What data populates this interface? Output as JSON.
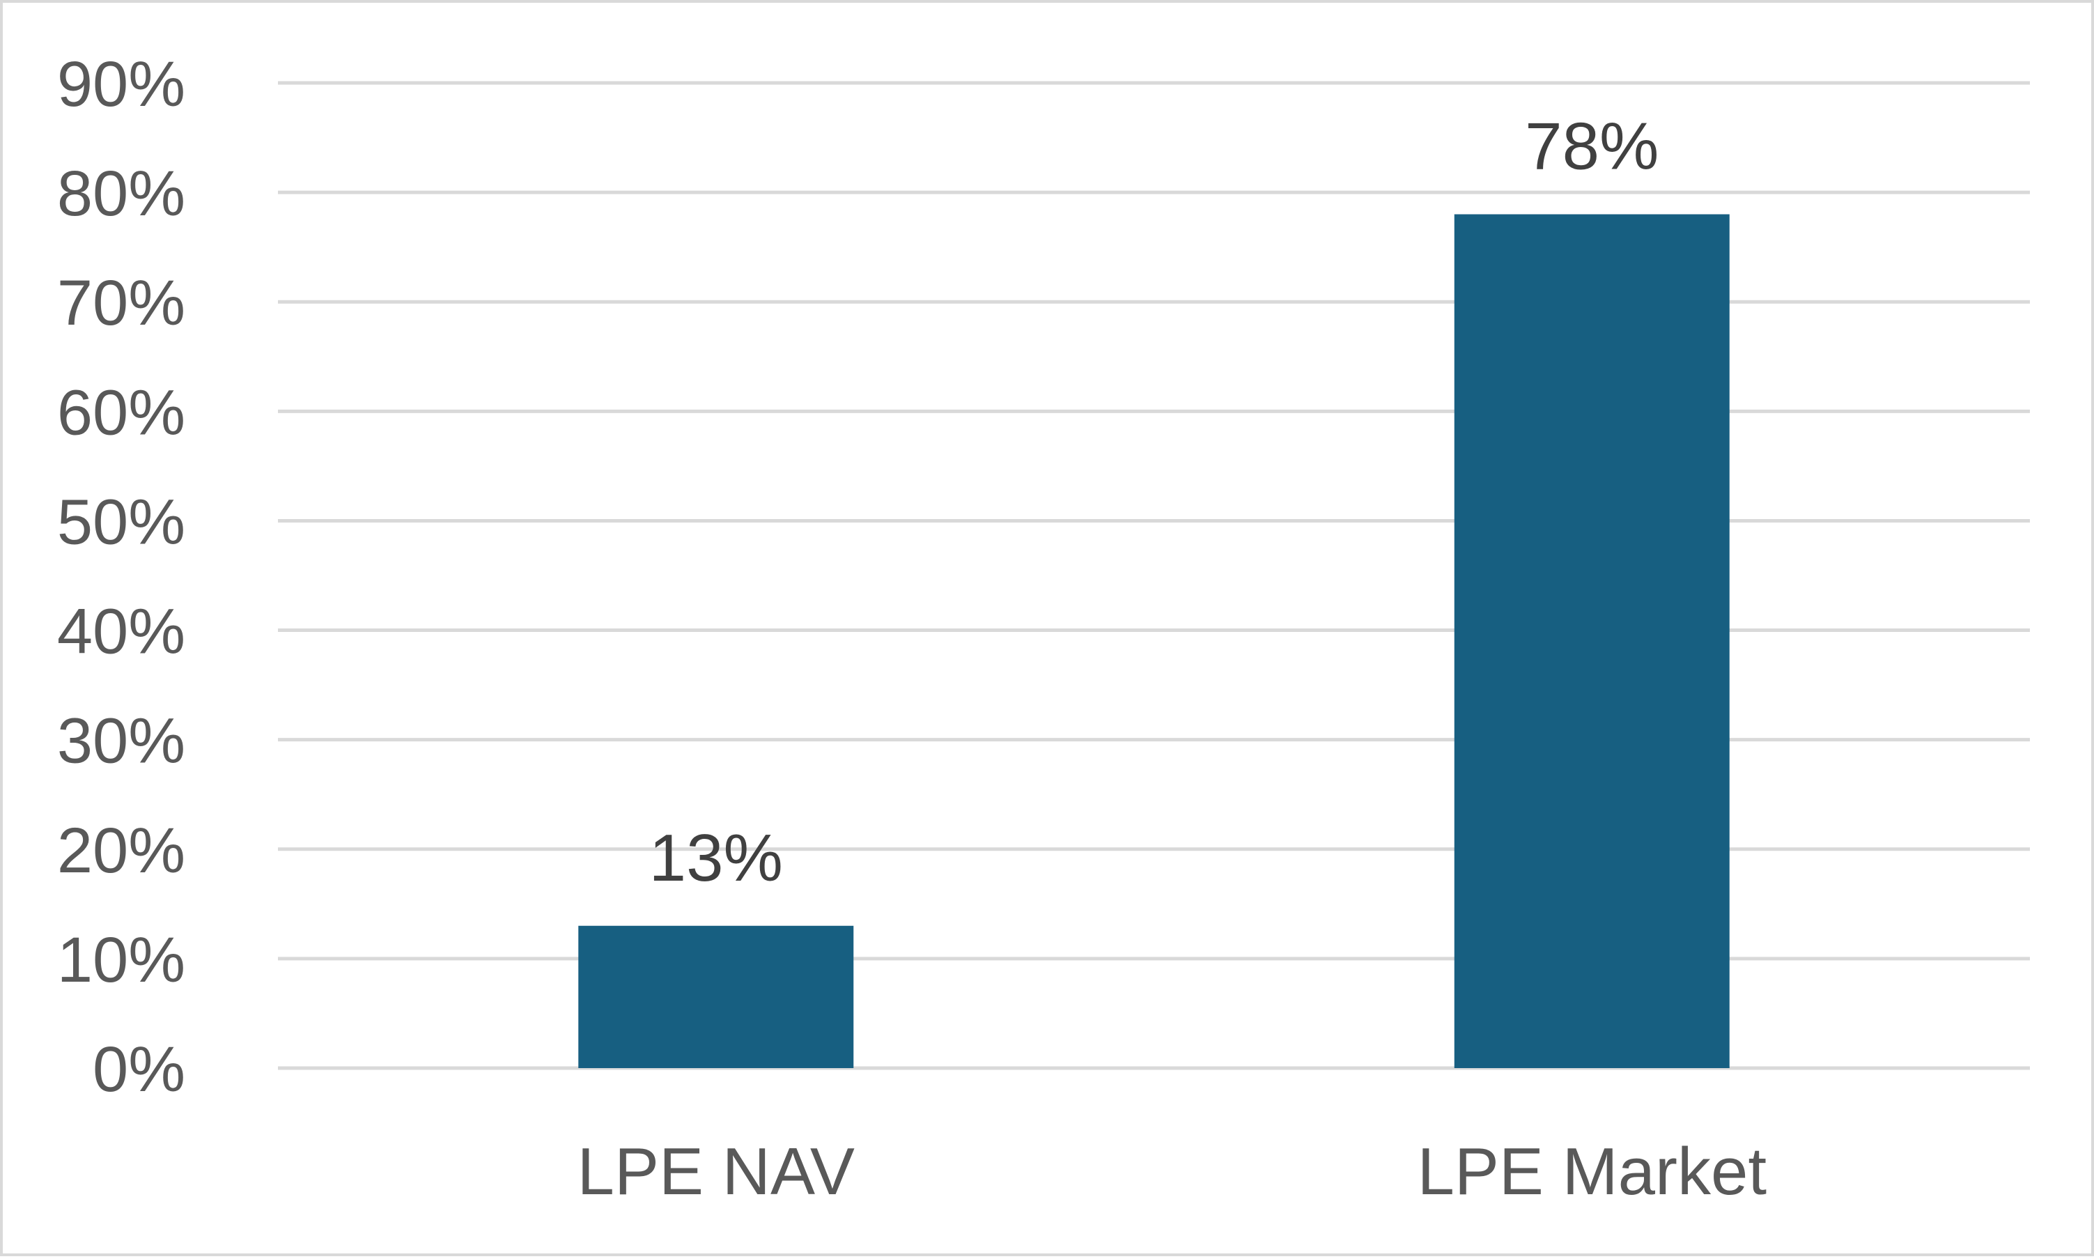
{
  "chart_data": {
    "type": "bar",
    "title": "",
    "xlabel": "",
    "ylabel": "",
    "categories": [
      "LPE NAV",
      "LPE Market"
    ],
    "values": [
      13,
      78
    ],
    "data_labels": [
      "13%",
      "78%"
    ],
    "ylim": [
      0,
      90
    ],
    "y_ticks": [
      0,
      10,
      20,
      30,
      40,
      50,
      60,
      70,
      80,
      90
    ],
    "y_tick_labels": [
      "0%",
      "10%",
      "20%",
      "30%",
      "40%",
      "50%",
      "60%",
      "70%",
      "80%",
      "90%"
    ],
    "grid": true,
    "legend": "none",
    "bar_color": "#175f81"
  }
}
